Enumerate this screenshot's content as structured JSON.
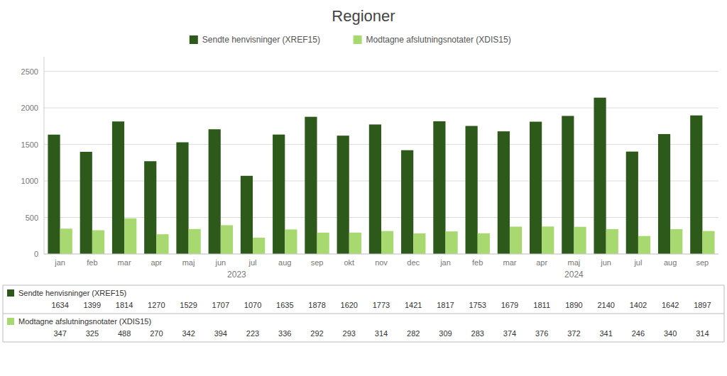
{
  "chart_data": {
    "type": "bar",
    "title": "Regioner",
    "categories": [
      "jan",
      "feb",
      "mar",
      "apr",
      "maj",
      "jun",
      "jul",
      "aug",
      "sep",
      "okt",
      "nov",
      "dec",
      "jan",
      "feb",
      "mar",
      "apr",
      "maj",
      "jun",
      "jul",
      "aug",
      "sep"
    ],
    "series": [
      {
        "name": "Sendte henvisninger (XREF15)",
        "color": "#2d5a1b",
        "values": [
          1634,
          1399,
          1814,
          1270,
          1529,
          1707,
          1070,
          1635,
          1878,
          1620,
          1773,
          1421,
          1817,
          1753,
          1679,
          1811,
          1890,
          2140,
          1402,
          1642,
          1897
        ]
      },
      {
        "name": "Modtagne afslutningsnotater (XDIS15)",
        "color": "#a8d870",
        "values": [
          347,
          325,
          488,
          270,
          342,
          394,
          223,
          336,
          292,
          293,
          314,
          282,
          309,
          283,
          374,
          376,
          372,
          341,
          246,
          340,
          314
        ]
      }
    ],
    "annotations": [
      {
        "text": "2023",
        "x": 5.5
      },
      {
        "text": "2024",
        "x": 16.0
      }
    ],
    "ylim": [
      0,
      2700
    ],
    "yticks": [
      0,
      500,
      1000,
      1500,
      2000,
      2500
    ],
    "grid": true,
    "legend": "top",
    "data_labels": true
  }
}
